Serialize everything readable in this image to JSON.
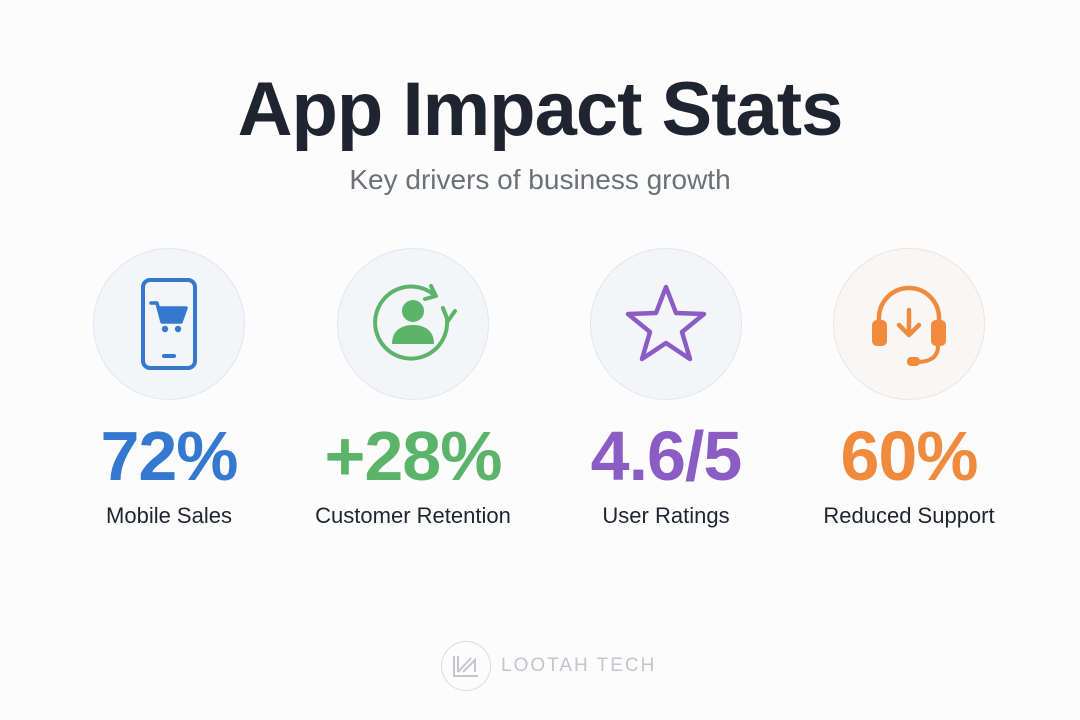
{
  "header": {
    "title": "App Impact Stats",
    "subtitle": "Key drivers of business growth"
  },
  "stats": [
    {
      "value": "72%",
      "label": "Mobile Sales",
      "color": "#3478cf",
      "icon": "mobile-cart-icon"
    },
    {
      "value": "+28%",
      "label": "Customer Retention",
      "color": "#5cb36a",
      "icon": "user-refresh-icon"
    },
    {
      "value": "4.6/5",
      "label": "User Ratings",
      "color": "#8a5cc4",
      "icon": "star-icon"
    },
    {
      "value": "60%",
      "label": "Reduced Support",
      "color": "#f08a3c",
      "icon": "headset-download-icon"
    }
  ],
  "footer": {
    "brand": "LOOTAH TECH",
    "logo_icon": "lootah-logo-icon",
    "logo_color": "#c3c6cc"
  }
}
